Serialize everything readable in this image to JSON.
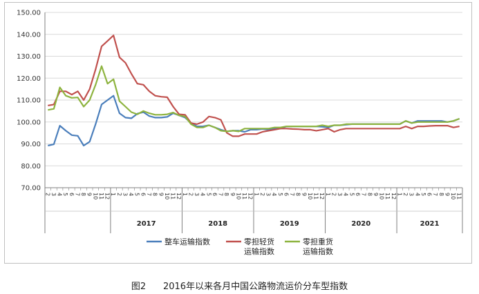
{
  "caption": {
    "figure_no": "图2",
    "title": "2016年以来各月中国公路物流运价分车型指数"
  },
  "chart_data": {
    "type": "line",
    "ylim": [
      70,
      150
    ],
    "yticks": [
      "70.00",
      "80.00",
      "90.00",
      "100.00",
      "110.00",
      "120.00",
      "130.00",
      "140.00",
      "150.00"
    ],
    "grid": true,
    "legend_position": "bottom",
    "years": [
      {
        "label": "",
        "months": 11
      },
      {
        "label": "2017",
        "months": 12
      },
      {
        "label": "2018",
        "months": 12
      },
      {
        "label": "2019",
        "months": 12
      },
      {
        "label": "2020",
        "months": 12
      },
      {
        "label": "2021",
        "months": 11
      }
    ],
    "month_labels": [
      "2",
      "3",
      "4",
      "5",
      "6",
      "7",
      "8",
      "9",
      "10",
      "11",
      "12",
      "1",
      "2",
      "3",
      "4",
      "5",
      "6",
      "7",
      "8",
      "9",
      "10",
      "11",
      "12",
      "1",
      "2",
      "3",
      "4",
      "5",
      "6",
      "7",
      "8",
      "9",
      "10",
      "11",
      "12",
      "1",
      "2",
      "3",
      "4",
      "5",
      "6",
      "7",
      "8",
      "9",
      "10",
      "11",
      "12",
      "1",
      "2",
      "3",
      "4",
      "5",
      "6",
      "7",
      "8",
      "9",
      "10",
      "11",
      "12",
      "1",
      "2",
      "3",
      "4",
      "5",
      "6",
      "7",
      "8",
      "9",
      "10",
      "11"
    ],
    "series": [
      {
        "name": "整车运输指数",
        "color": "#4a7ebb",
        "values": [
          89.2,
          89.8,
          98.3,
          96.0,
          94.0,
          93.7,
          89.2,
          91.0,
          99.0,
          108.0,
          110.0,
          112.0,
          104.0,
          102.0,
          101.7,
          103.8,
          104.5,
          102.7,
          102.0,
          102.0,
          102.3,
          104.0,
          103.0,
          102.0,
          99.5,
          98.0,
          98.0,
          98.5,
          97.5,
          96.5,
          95.7,
          96.0,
          96.0,
          95.5,
          96.5,
          96.5,
          96.8,
          96.5,
          97.0,
          97.0,
          98.0,
          98.0,
          98.0,
          98.0,
          98.0,
          98.0,
          97.8,
          97.5,
          98.5,
          98.5,
          98.8,
          99.0,
          99.0,
          99.0,
          99.0,
          99.0,
          99.0,
          99.0,
          99.0,
          99.0,
          100.5,
          99.5,
          100.5,
          100.5,
          100.5,
          100.5,
          100.5,
          100.0,
          100.5,
          101.5
        ]
      },
      {
        "name": "零担轻货\n运输指数",
        "color": "#c0504d",
        "values": [
          107.5,
          108.0,
          114.0,
          114.0,
          112.5,
          114.0,
          110.0,
          115.0,
          124.0,
          134.5,
          137.0,
          139.5,
          129.5,
          127.0,
          122.0,
          117.5,
          117.0,
          114.0,
          112.0,
          111.5,
          111.3,
          107.0,
          103.5,
          103.3,
          99.5,
          99.0,
          100.0,
          102.5,
          102.0,
          101.0,
          95.0,
          93.5,
          93.5,
          94.5,
          94.5,
          94.5,
          95.5,
          96.0,
          96.5,
          97.0,
          97.0,
          96.8,
          96.7,
          96.5,
          96.5,
          96.0,
          96.5,
          97.0,
          95.5,
          96.5,
          97.0,
          97.0,
          97.0,
          97.0,
          97.0,
          97.0,
          97.0,
          97.0,
          97.0,
          97.0,
          98.0,
          97.0,
          98.0,
          98.0,
          98.2,
          98.3,
          98.3,
          98.3,
          97.5,
          98.0
        ]
      },
      {
        "name": "零担重货\n运输指数",
        "color": "#8db33e",
        "values": [
          105.5,
          106.0,
          115.8,
          112.0,
          111.0,
          111.2,
          107.0,
          110.0,
          117.0,
          125.5,
          117.5,
          119.5,
          109.5,
          107.0,
          104.5,
          103.5,
          105.0,
          104.0,
          103.3,
          103.3,
          103.5,
          104.3,
          103.0,
          102.5,
          99.0,
          97.5,
          97.5,
          98.5,
          97.5,
          96.0,
          95.7,
          96.0,
          95.7,
          97.0,
          97.0,
          97.0,
          97.0,
          97.0,
          97.5,
          97.5,
          98.0,
          98.0,
          98.0,
          98.0,
          98.0,
          98.0,
          98.5,
          98.0,
          98.5,
          98.5,
          99.0,
          99.0,
          99.0,
          99.0,
          99.0,
          99.0,
          99.0,
          99.0,
          99.0,
          99.0,
          100.5,
          99.5,
          100.0,
          100.0,
          100.0,
          100.0,
          100.0,
          100.0,
          100.5,
          101.5
        ]
      }
    ]
  }
}
